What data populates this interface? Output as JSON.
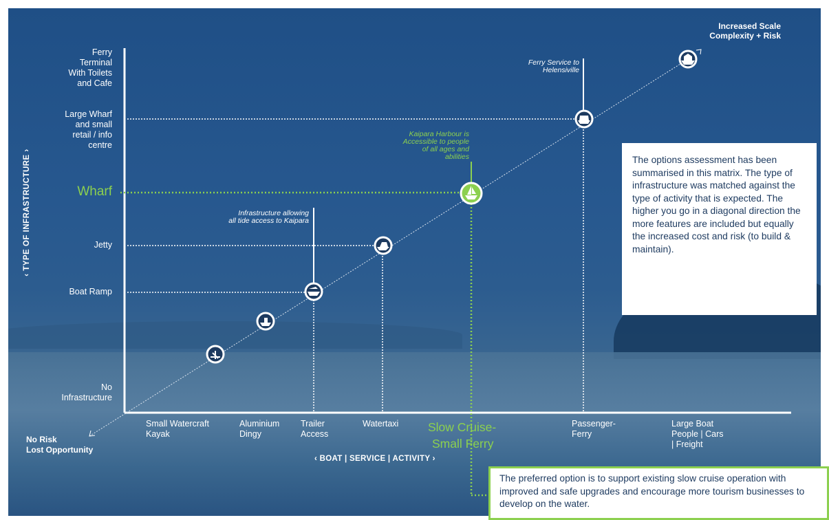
{
  "y_axis": {
    "title": "‹ TYPE OF INFRASTRUCTURE ›",
    "levels": [
      {
        "label": "Ferry Terminal With Toilets and Cafe",
        "lines": [
          "Ferry",
          "Terminal",
          "With Toilets",
          "and Cafe"
        ]
      },
      {
        "label": "Large Wharf and small retail / info centre",
        "lines": [
          "Large Wharf",
          "and small",
          "retail / info",
          "centre"
        ]
      },
      {
        "label": "Wharf",
        "lines": [
          "Wharf"
        ],
        "highlight": true
      },
      {
        "label": "Jetty",
        "lines": [
          "Jetty"
        ]
      },
      {
        "label": "Boat Ramp",
        "lines": [
          "Boat Ramp"
        ]
      },
      {
        "label": "No Infrastructure",
        "lines": [
          "No",
          "Infrastructure"
        ]
      }
    ]
  },
  "x_axis": {
    "title": "‹ BOAT | SERVICE | ACTIVITY ›",
    "categories": [
      {
        "label": "Small Watercraft Kayak",
        "lines": [
          "Small Watercraft",
          "Kayak"
        ]
      },
      {
        "label": "Aluminium Dingy",
        "lines": [
          "Aluminium",
          "Dingy"
        ]
      },
      {
        "label": "Trailer Access",
        "lines": [
          "Trailer",
          "Access"
        ]
      },
      {
        "label": "Watertaxi",
        "lines": [
          "Watertaxi"
        ]
      },
      {
        "label": "Slow Cruise- Small Ferry",
        "lines": [
          "Slow Cruise-",
          "Small Ferry"
        ],
        "highlight": true
      },
      {
        "label": "Passenger- Ferry",
        "lines": [
          "Passenger-",
          "Ferry"
        ]
      },
      {
        "label": "Large Boat People | Cars | Freight",
        "lines": [
          "Large Boat",
          "People | Cars",
          "| Freight"
        ]
      }
    ]
  },
  "corners": {
    "top_right": [
      "Increased Scale",
      "Complexity + Risk"
    ],
    "bottom_left": [
      "No Risk",
      "Lost Opportunity"
    ]
  },
  "annotations": {
    "ferry": [
      "Ferry Service to",
      "Helensiville"
    ],
    "kaipara": [
      "Kaipara Harbour is",
      "Accessible to people",
      "of all ages and",
      "abilities"
    ],
    "tide": [
      "Infrastructure allowing",
      "all tide access to Kaipara"
    ]
  },
  "markers": [
    {
      "name": "kayak-icon"
    },
    {
      "name": "dinghy-icon"
    },
    {
      "name": "trailer-boat-icon"
    },
    {
      "name": "watertaxi-icon"
    },
    {
      "name": "slow-cruise-ferry-icon",
      "highlight": true
    },
    {
      "name": "passenger-ferry-icon"
    },
    {
      "name": "large-ship-icon"
    }
  ],
  "info_box": {
    "text": "The options assessment has been summarised in this matrix. The type of infrastructure was matched against the type of activity that is expected. The higher you go in a diagonal direction the more features are included but equally the increased cost and risk (to build & maintain)."
  },
  "preferred_box": {
    "text": "The preferred option is to support existing slow cruise operation with improved and safe upgrades and encourage more tourism businesses to develop on the water."
  },
  "colors": {
    "accent_green": "#8cd04f",
    "navy": "#1d3a5f",
    "marker_fill": "#1d3a5f"
  }
}
